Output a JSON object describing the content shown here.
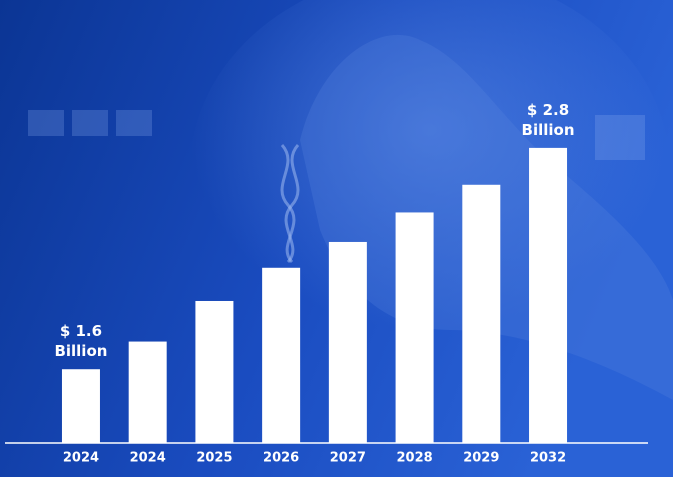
{
  "chart_data": {
    "type": "bar",
    "categories": [
      "2024",
      "2024",
      "2025",
      "2026",
      "2027",
      "2028",
      "2029",
      "2032"
    ],
    "values": [
      1.6,
      1.75,
      1.97,
      2.15,
      2.29,
      2.45,
      2.6,
      2.8
    ],
    "value_labels": [
      "$ 1.6 Billion",
      null,
      null,
      null,
      null,
      null,
      null,
      "$ 2.8 Billion"
    ],
    "color": "#ffffff",
    "ylim": [
      1.2,
      3.0
    ]
  }
}
